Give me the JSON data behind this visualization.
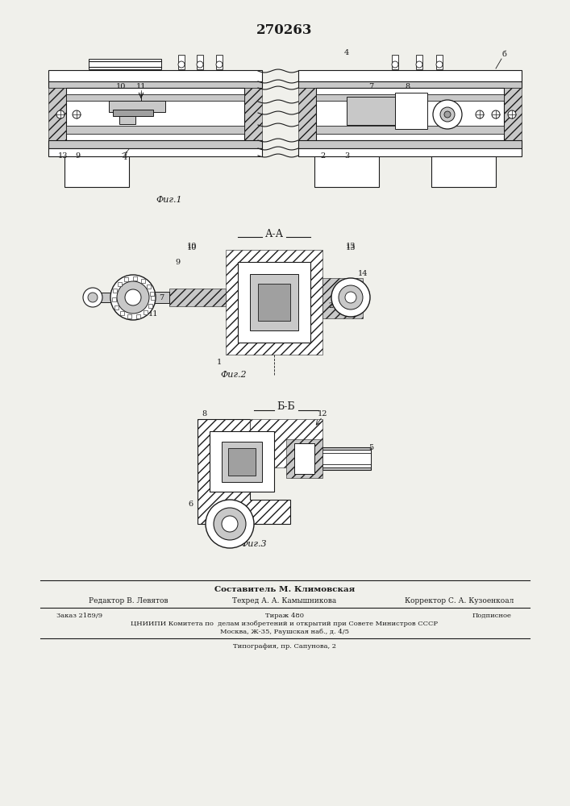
{
  "title": "270263",
  "bg_color": "#f0f0eb",
  "lc": "#1a1a1a",
  "hatch_color": "#333333",
  "fig1_label": "Фиг.1",
  "fig2_label": "Фиг.2",
  "fig3_label": "Фиг.3",
  "section_aa": "А-А",
  "section_bb": "Б-Б",
  "compositor": "Составитель М. Климовская",
  "editor_row": "Редактор В. Левятов        Техред А. А. Камышникова        Корректор С. А. Кузоенкоал",
  "order": "Заказ 2189/9",
  "tirazh": "Тираж 480",
  "podpisnoe": "Подписное",
  "cniip1": "ЦНИИПИ Комитета по  делам изобретений и открытий при Совете Министров СССР",
  "cniip2": "Москва, Ж-35, Раушская наб., д. 4/5",
  "tipografia": "Типография, пр. Сапунова, 2",
  "gray_light": "#c8c8c8",
  "gray_mid": "#a0a0a0",
  "gray_dark": "#707070"
}
